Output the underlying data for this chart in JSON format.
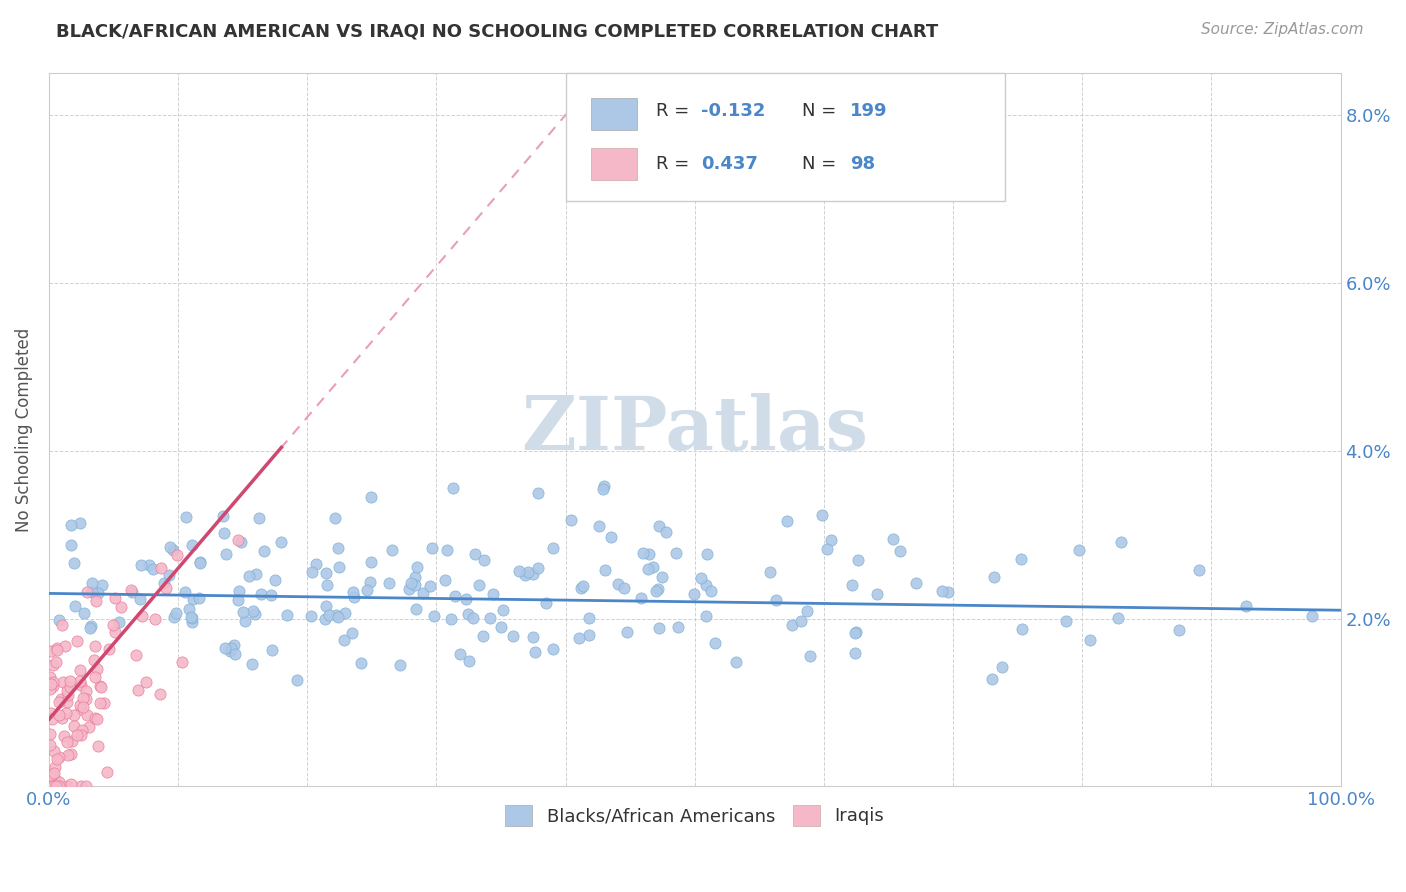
{
  "title": "BLACK/AFRICAN AMERICAN VS IRAQI NO SCHOOLING COMPLETED CORRELATION CHART",
  "source": "Source: ZipAtlas.com",
  "ylabel": "No Schooling Completed",
  "watermark": "ZIPatlas",
  "blue_color": "#adc8e6",
  "blue_edge": "#7aaed4",
  "pink_color": "#f5b8c8",
  "pink_edge": "#e87898",
  "trend_blue_color": "#4a86c8",
  "trend_pink_color": "#d04870",
  "trend_pink_dashed_color": "#e8a0b0",
  "title_color": "#333333",
  "source_color": "#999999",
  "axis_tick_color": "#4a86c8",
  "ylabel_color": "#555555",
  "grid_color": "#cccccc",
  "background_color": "#ffffff",
  "legend_text_color": "#333333",
  "legend_value_color": "#4a86c8",
  "watermark_color": "#d0dde8",
  "seed": 42,
  "n_blue": 199,
  "n_pink": 98
}
